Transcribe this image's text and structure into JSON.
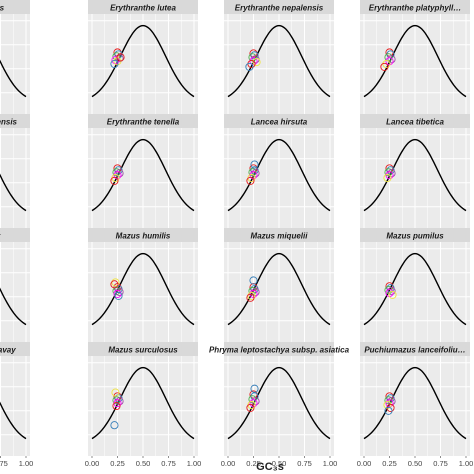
{
  "figure": {
    "xlabel": "GC₃s",
    "x_ticks": [
      "0.00",
      "0.25",
      "0.50",
      "0.75",
      "1.00"
    ],
    "colors": {
      "panel_bg": "#ebebeb",
      "strip_bg": "#d9d9d9",
      "grid": "#ffffff",
      "curve": "#000000"
    },
    "point_colors": [
      "#e41a1c",
      "#377eb8",
      "#4daf4a",
      "#984ea3",
      "#ff00ff",
      "#f0e442"
    ]
  },
  "chart_data": [
    {
      "type": "scatter",
      "title": "…rtia orientalis",
      "xlim": [
        0,
        1
      ],
      "ylim": [
        0,
        1
      ],
      "grid": true,
      "curve": "expected ENC curve",
      "points": []
    },
    {
      "type": "scatter",
      "title": "Erythranthe lutea",
      "xlim": [
        0,
        1
      ],
      "ylim": [
        0,
        1
      ],
      "grid": true,
      "curve": "expected ENC curve",
      "points": [
        [
          0.25,
          0.62
        ],
        [
          0.26,
          0.6
        ],
        [
          0.24,
          0.58
        ],
        [
          0.27,
          0.56
        ],
        [
          0.23,
          0.54
        ],
        [
          0.25,
          0.53
        ],
        [
          0.28,
          0.57
        ],
        [
          0.22,
          0.5
        ]
      ]
    },
    {
      "type": "scatter",
      "title": "Erythranthe nepalensis",
      "xlim": [
        0,
        1
      ],
      "ylim": [
        0,
        1
      ],
      "grid": true,
      "curve": "expected ENC curve",
      "points": [
        [
          0.25,
          0.61
        ],
        [
          0.26,
          0.59
        ],
        [
          0.24,
          0.57
        ],
        [
          0.27,
          0.55
        ],
        [
          0.25,
          0.53
        ],
        [
          0.28,
          0.52
        ],
        [
          0.23,
          0.5
        ],
        [
          0.21,
          0.47
        ]
      ]
    },
    {
      "type": "scatter",
      "title": "Erythranthe platyphyll…",
      "xlim": [
        0,
        1
      ],
      "ylim": [
        0,
        1
      ],
      "grid": true,
      "curve": "expected ENC curve",
      "points": [
        [
          0.25,
          0.62
        ],
        [
          0.26,
          0.6
        ],
        [
          0.24,
          0.57
        ],
        [
          0.27,
          0.55
        ],
        [
          0.25,
          0.53
        ],
        [
          0.22,
          0.5
        ],
        [
          0.2,
          0.47
        ]
      ]
    },
    {
      "type": "scatter",
      "title": "…nthe szechuanensis",
      "xlim": [
        0,
        1
      ],
      "ylim": [
        0,
        1
      ],
      "grid": true,
      "curve": "expected ENC curve",
      "points": []
    },
    {
      "type": "scatter",
      "title": "Erythranthe tenella",
      "xlim": [
        0,
        1
      ],
      "ylim": [
        0,
        1
      ],
      "grid": true,
      "curve": "expected ENC curve",
      "points": [
        [
          0.25,
          0.6
        ],
        [
          0.26,
          0.58
        ],
        [
          0.24,
          0.56
        ],
        [
          0.27,
          0.55
        ],
        [
          0.25,
          0.53
        ],
        [
          0.23,
          0.5
        ],
        [
          0.22,
          0.47
        ]
      ]
    },
    {
      "type": "scatter",
      "title": "Lancea hirsuta",
      "xlim": [
        0,
        1
      ],
      "ylim": [
        0,
        1
      ],
      "grid": true,
      "curve": "expected ENC curve",
      "points": [
        [
          0.25,
          0.6
        ],
        [
          0.26,
          0.58
        ],
        [
          0.24,
          0.56
        ],
        [
          0.27,
          0.55
        ],
        [
          0.25,
          0.53
        ],
        [
          0.23,
          0.5
        ],
        [
          0.22,
          0.47
        ],
        [
          0.26,
          0.64
        ]
      ]
    },
    {
      "type": "scatter",
      "title": "Lancea tibetica",
      "xlim": [
        0,
        1
      ],
      "ylim": [
        0,
        1
      ],
      "grid": true,
      "curve": "expected ENC curve",
      "points": [
        [
          0.25,
          0.6
        ],
        [
          0.26,
          0.58
        ],
        [
          0.24,
          0.56
        ],
        [
          0.27,
          0.55
        ],
        [
          0.25,
          0.53
        ],
        [
          0.23,
          0.5
        ]
      ]
    },
    {
      "type": "scatter",
      "title": "…s caducifer",
      "xlim": [
        0,
        1
      ],
      "ylim": [
        0,
        1
      ],
      "grid": true,
      "curve": "expected ENC curve",
      "points": []
    },
    {
      "type": "scatter",
      "title": "Mazus humilis",
      "xlim": [
        0,
        1
      ],
      "ylim": [
        0,
        1
      ],
      "grid": true,
      "curve": "expected ENC curve",
      "points": [
        [
          0.25,
          0.55
        ],
        [
          0.26,
          0.53
        ],
        [
          0.24,
          0.51
        ],
        [
          0.27,
          0.5
        ],
        [
          0.25,
          0.48
        ],
        [
          0.23,
          0.6
        ],
        [
          0.22,
          0.58
        ],
        [
          0.26,
          0.46
        ]
      ]
    },
    {
      "type": "scatter",
      "title": "Mazus miquelii",
      "xlim": [
        0,
        1
      ],
      "ylim": [
        0,
        1
      ],
      "grid": true,
      "curve": "expected ENC curve",
      "points": [
        [
          0.25,
          0.55
        ],
        [
          0.26,
          0.53
        ],
        [
          0.24,
          0.51
        ],
        [
          0.27,
          0.5
        ],
        [
          0.25,
          0.48
        ],
        [
          0.23,
          0.46
        ],
        [
          0.22,
          0.44
        ],
        [
          0.25,
          0.62
        ]
      ]
    },
    {
      "type": "scatter",
      "title": "Mazus pumilus",
      "xlim": [
        0,
        1
      ],
      "ylim": [
        0,
        1
      ],
      "grid": true,
      "curve": "expected ENC curve",
      "points": [
        [
          0.25,
          0.56
        ],
        [
          0.26,
          0.54
        ],
        [
          0.24,
          0.52
        ],
        [
          0.27,
          0.51
        ],
        [
          0.25,
          0.49
        ],
        [
          0.28,
          0.47
        ]
      ]
    },
    {
      "type": "scatter",
      "title": "…umilus var. delavay",
      "xlim": [
        0,
        1
      ],
      "ylim": [
        0,
        1
      ],
      "grid": true,
      "curve": "expected ENC curve",
      "points": []
    },
    {
      "type": "scatter",
      "title": "Mazus surculosus",
      "xlim": [
        0,
        1
      ],
      "ylim": [
        0,
        1
      ],
      "grid": true,
      "curve": "expected ENC curve",
      "points": [
        [
          0.25,
          0.6
        ],
        [
          0.26,
          0.58
        ],
        [
          0.24,
          0.56
        ],
        [
          0.27,
          0.55
        ],
        [
          0.25,
          0.53
        ],
        [
          0.23,
          0.64
        ],
        [
          0.24,
          0.5
        ],
        [
          0.22,
          0.3
        ]
      ]
    },
    {
      "type": "scatter",
      "title": "Phryma leptostachya subsp. asiatica",
      "xlim": [
        0,
        1
      ],
      "ylim": [
        0,
        1
      ],
      "grid": true,
      "curve": "expected ENC curve",
      "points": [
        [
          0.25,
          0.62
        ],
        [
          0.26,
          0.6
        ],
        [
          0.24,
          0.57
        ],
        [
          0.27,
          0.55
        ],
        [
          0.25,
          0.53
        ],
        [
          0.23,
          0.51
        ],
        [
          0.22,
          0.48
        ],
        [
          0.26,
          0.68
        ]
      ]
    },
    {
      "type": "scatter",
      "title": "Puchiumazus lanceifoliu…",
      "xlim": [
        0,
        1
      ],
      "ylim": [
        0,
        1
      ],
      "grid": true,
      "curve": "expected ENC curve",
      "points": [
        [
          0.25,
          0.6
        ],
        [
          0.26,
          0.58
        ],
        [
          0.24,
          0.56
        ],
        [
          0.27,
          0.55
        ],
        [
          0.25,
          0.53
        ],
        [
          0.23,
          0.51
        ],
        [
          0.26,
          0.48
        ],
        [
          0.24,
          0.45
        ]
      ]
    }
  ]
}
